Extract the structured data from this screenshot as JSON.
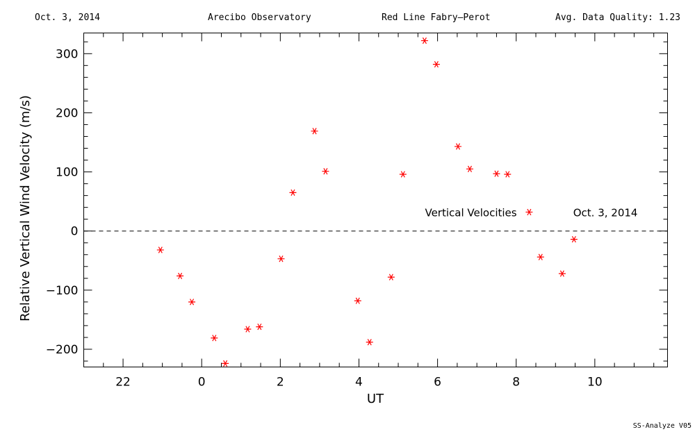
{
  "header": {
    "date": "Oct. 3, 2014",
    "observatory": "Arecibo Observatory",
    "instrument": "Red Line Fabry–Perot",
    "quality": "Avg. Data Quality: 1.23"
  },
  "footer": "SS-Analyze V05",
  "chart_data": {
    "type": "scatter",
    "title": "",
    "xlabel": "UT",
    "ylabel": "Relative Vertical Wind Velocity (m/s)",
    "xlim_hours_continuous": [
      21.0,
      35.85
    ],
    "ylim": [
      -230,
      335
    ],
    "x_ticks": [
      {
        "value": 22,
        "label": "22"
      },
      {
        "value": 24,
        "label": "0"
      },
      {
        "value": 26,
        "label": "2"
      },
      {
        "value": 28,
        "label": "4"
      },
      {
        "value": 30,
        "label": "6"
      },
      {
        "value": 32,
        "label": "8"
      },
      {
        "value": 34,
        "label": "10"
      }
    ],
    "y_ticks": [
      {
        "value": -200,
        "label": "−200"
      },
      {
        "value": -100,
        "label": "−100"
      },
      {
        "value": 0,
        "label": "0"
      },
      {
        "value": 100,
        "label": "100"
      },
      {
        "value": 200,
        "label": "200"
      },
      {
        "value": 300,
        "label": "300"
      }
    ],
    "reference_line": {
      "y": 0,
      "style": "dashed"
    },
    "marker": "asterisk",
    "marker_color": "#ff0000",
    "annotations": [
      {
        "text": "Vertical Velocities",
        "x": 29.68,
        "y": 32
      },
      {
        "text": "Oct. 3, 2014",
        "x": 33.45,
        "y": 32
      }
    ],
    "series": [
      {
        "name": "",
        "points": [
          {
            "x": 22.95,
            "y": -32
          },
          {
            "x": 23.45,
            "y": -76
          },
          {
            "x": 23.75,
            "y": -120
          },
          {
            "x": 24.32,
            "y": -181
          },
          {
            "x": 24.6,
            "y": -224
          },
          {
            "x": 25.17,
            "y": -166
          },
          {
            "x": 25.47,
            "y": -162
          },
          {
            "x": 26.02,
            "y": -47
          },
          {
            "x": 26.32,
            "y": 65
          },
          {
            "x": 26.87,
            "y": 169
          },
          {
            "x": 27.15,
            "y": 101
          },
          {
            "x": 27.97,
            "y": -118
          },
          {
            "x": 28.27,
            "y": -188
          },
          {
            "x": 28.82,
            "y": -78
          },
          {
            "x": 29.12,
            "y": 96
          },
          {
            "x": 29.67,
            "y": 322
          },
          {
            "x": 29.97,
            "y": 282
          },
          {
            "x": 30.52,
            "y": 143
          },
          {
            "x": 30.82,
            "y": 105
          },
          {
            "x": 31.5,
            "y": 97
          },
          {
            "x": 31.78,
            "y": 96
          },
          {
            "x": 32.33,
            "y": 32
          },
          {
            "x": 32.62,
            "y": -44
          },
          {
            "x": 33.17,
            "y": -72
          },
          {
            "x": 33.47,
            "y": -14
          }
        ]
      }
    ]
  }
}
